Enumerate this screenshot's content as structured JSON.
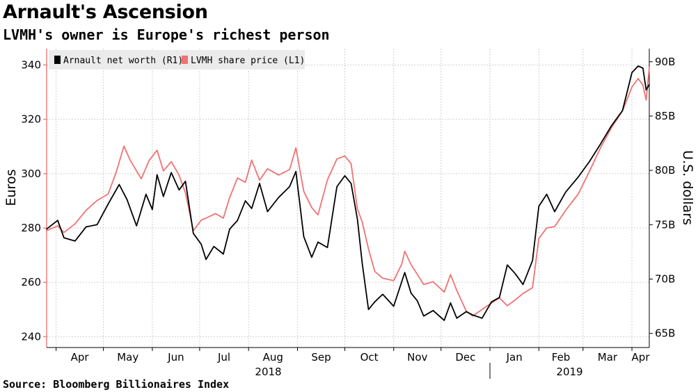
{
  "header": {
    "title": "Arnault's Ascension",
    "subtitle": "LVMH's owner is Europe's richest person"
  },
  "footer": {
    "source": "Source: Bloomberg Billionaires Index"
  },
  "chart_data": {
    "type": "line",
    "title": "Arnault's Ascension",
    "subtitle": "LVMH's owner is Europe's richest person",
    "x_axis": {
      "month_labels": [
        "Apr",
        "May",
        "Jun",
        "Jul",
        "Aug",
        "Sep",
        "Oct",
        "Nov",
        "Dec",
        "Jan",
        "Feb",
        "Mar",
        "Apr"
      ],
      "year_labels": [
        "2018",
        "2019"
      ],
      "range": [
        "2018-03-26",
        "2019-04-12"
      ]
    },
    "y_left": {
      "label": "Euros",
      "ylim": [
        236,
        346
      ],
      "ticks": [
        240,
        260,
        280,
        300,
        320,
        340
      ],
      "tick_labels": [
        "240",
        "260",
        "280",
        "300",
        "320",
        "340"
      ]
    },
    "y_right": {
      "label": "U.S. dollars",
      "ylim": [
        63.7,
        91.2
      ],
      "ticks": [
        65,
        70,
        75,
        80,
        85,
        90
      ],
      "tick_labels": [
        "65B",
        "70B",
        "75B",
        "80B",
        "85B",
        "90B"
      ]
    },
    "grid": true,
    "legend_position": "top-left",
    "series": [
      {
        "name": "Arnault net worth (R1)",
        "axis": "right",
        "color": "#000000",
        "points": [
          [
            "2018-03-26",
            74.6
          ],
          [
            "2018-04-02",
            75.4
          ],
          [
            "2018-04-06",
            73.8
          ],
          [
            "2018-04-13",
            73.5
          ],
          [
            "2018-04-20",
            74.8
          ],
          [
            "2018-04-27",
            75.0
          ],
          [
            "2018-05-04",
            76.9
          ],
          [
            "2018-05-11",
            78.7
          ],
          [
            "2018-05-16",
            77.3
          ],
          [
            "2018-05-22",
            74.9
          ],
          [
            "2018-05-28",
            77.8
          ],
          [
            "2018-06-01",
            76.4
          ],
          [
            "2018-06-04",
            79.6
          ],
          [
            "2018-06-08",
            77.6
          ],
          [
            "2018-06-13",
            79.8
          ],
          [
            "2018-06-18",
            78.2
          ],
          [
            "2018-06-22",
            79.0
          ],
          [
            "2018-06-27",
            74.2
          ],
          [
            "2018-07-02",
            73.2
          ],
          [
            "2018-07-05",
            71.8
          ],
          [
            "2018-07-10",
            73.0
          ],
          [
            "2018-07-16",
            72.3
          ],
          [
            "2018-07-20",
            74.6
          ],
          [
            "2018-07-25",
            75.4
          ],
          [
            "2018-07-30",
            77.2
          ],
          [
            "2018-08-03",
            76.5
          ],
          [
            "2018-08-08",
            78.8
          ],
          [
            "2018-08-13",
            76.2
          ],
          [
            "2018-08-20",
            77.5
          ],
          [
            "2018-08-27",
            78.5
          ],
          [
            "2018-08-31",
            79.9
          ],
          [
            "2018-09-05",
            73.9
          ],
          [
            "2018-09-10",
            72.0
          ],
          [
            "2018-09-14",
            73.4
          ],
          [
            "2018-09-20",
            72.9
          ],
          [
            "2018-09-26",
            78.5
          ],
          [
            "2018-10-01",
            79.5
          ],
          [
            "2018-10-05",
            78.8
          ],
          [
            "2018-10-09",
            75.5
          ],
          [
            "2018-10-12",
            71.5
          ],
          [
            "2018-10-16",
            67.2
          ],
          [
            "2018-10-20",
            67.9
          ],
          [
            "2018-10-25",
            68.6
          ],
          [
            "2018-11-01",
            67.5
          ],
          [
            "2018-11-08",
            70.6
          ],
          [
            "2018-11-12",
            68.7
          ],
          [
            "2018-11-16",
            68.0
          ],
          [
            "2018-11-20",
            66.6
          ],
          [
            "2018-11-26",
            67.1
          ],
          [
            "2018-12-03",
            66.2
          ],
          [
            "2018-12-07",
            67.8
          ],
          [
            "2018-12-11",
            66.4
          ],
          [
            "2018-12-17",
            67.0
          ],
          [
            "2018-12-21",
            66.7
          ],
          [
            "2018-12-27",
            66.4
          ],
          [
            "2019-01-02",
            67.9
          ],
          [
            "2019-01-07",
            68.3
          ],
          [
            "2019-01-12",
            71.3
          ],
          [
            "2019-01-17",
            70.5
          ],
          [
            "2019-01-22",
            69.5
          ],
          [
            "2019-01-28",
            71.7
          ],
          [
            "2019-02-01",
            76.7
          ],
          [
            "2019-02-06",
            77.8
          ],
          [
            "2019-02-11",
            76.2
          ],
          [
            "2019-02-18",
            78.0
          ],
          [
            "2019-02-26",
            79.4
          ],
          [
            "2019-03-05",
            80.8
          ],
          [
            "2019-03-12",
            82.4
          ],
          [
            "2019-03-19",
            84.1
          ],
          [
            "2019-03-26",
            85.5
          ],
          [
            "2019-04-01",
            89.0
          ],
          [
            "2019-04-05",
            89.6
          ],
          [
            "2019-04-08",
            89.4
          ],
          [
            "2019-04-10",
            87.4
          ],
          [
            "2019-04-12",
            87.9
          ]
        ]
      },
      {
        "name": "LVMH share price (L1)",
        "axis": "left",
        "color": "#f07272",
        "points": [
          [
            "2018-03-26",
            279.0
          ],
          [
            "2018-04-02",
            280.8
          ],
          [
            "2018-04-06",
            278.3
          ],
          [
            "2018-04-13",
            281.5
          ],
          [
            "2018-04-20",
            286.5
          ],
          [
            "2018-04-27",
            290.1
          ],
          [
            "2018-05-04",
            292.5
          ],
          [
            "2018-05-09",
            300.3
          ],
          [
            "2018-05-14",
            310.1
          ],
          [
            "2018-05-18",
            304.9
          ],
          [
            "2018-05-22",
            301.0
          ],
          [
            "2018-05-25",
            298.1
          ],
          [
            "2018-05-30",
            304.9
          ],
          [
            "2018-06-04",
            308.6
          ],
          [
            "2018-06-08",
            301.0
          ],
          [
            "2018-06-13",
            304.4
          ],
          [
            "2018-06-18",
            299.4
          ],
          [
            "2018-06-22",
            292.9
          ],
          [
            "2018-06-27",
            279.0
          ],
          [
            "2018-07-02",
            282.9
          ],
          [
            "2018-07-06",
            283.9
          ],
          [
            "2018-07-11",
            285.3
          ],
          [
            "2018-07-16",
            283.6
          ],
          [
            "2018-07-20",
            291.2
          ],
          [
            "2018-07-25",
            298.4
          ],
          [
            "2018-07-30",
            296.8
          ],
          [
            "2018-08-03",
            305.0
          ],
          [
            "2018-08-08",
            297.6
          ],
          [
            "2018-08-13",
            301.8
          ],
          [
            "2018-08-20",
            299.5
          ],
          [
            "2018-08-27",
            301.5
          ],
          [
            "2018-08-31",
            309.5
          ],
          [
            "2018-09-05",
            293.5
          ],
          [
            "2018-09-10",
            287.5
          ],
          [
            "2018-09-14",
            284.8
          ],
          [
            "2018-09-20",
            297.7
          ],
          [
            "2018-09-26",
            305.4
          ],
          [
            "2018-10-01",
            306.5
          ],
          [
            "2018-10-05",
            303.7
          ],
          [
            "2018-10-09",
            287.0
          ],
          [
            "2018-10-12",
            282.3
          ],
          [
            "2018-10-16",
            272.3
          ],
          [
            "2018-10-20",
            264.0
          ],
          [
            "2018-10-25",
            261.5
          ],
          [
            "2018-11-01",
            260.6
          ],
          [
            "2018-11-06",
            266.6
          ],
          [
            "2018-11-08",
            271.4
          ],
          [
            "2018-11-12",
            266.5
          ],
          [
            "2018-11-16",
            262.9
          ],
          [
            "2018-11-20",
            259.2
          ],
          [
            "2018-11-26",
            260.2
          ],
          [
            "2018-12-03",
            256.4
          ],
          [
            "2018-12-07",
            262.8
          ],
          [
            "2018-12-11",
            257.0
          ],
          [
            "2018-12-17",
            249.4
          ],
          [
            "2018-12-21",
            247.6
          ],
          [
            "2018-12-27",
            250.0
          ],
          [
            "2019-01-02",
            252.4
          ],
          [
            "2019-01-07",
            254.3
          ],
          [
            "2019-01-12",
            251.4
          ],
          [
            "2019-01-17",
            253.5
          ],
          [
            "2019-01-22",
            255.9
          ],
          [
            "2019-01-28",
            258.0
          ],
          [
            "2019-02-01",
            276.1
          ],
          [
            "2019-02-06",
            280.0
          ],
          [
            "2019-02-11",
            280.5
          ],
          [
            "2019-02-18",
            286.5
          ],
          [
            "2019-02-26",
            292.5
          ],
          [
            "2019-03-05",
            300.8
          ],
          [
            "2019-03-12",
            309.4
          ],
          [
            "2019-03-19",
            316.9
          ],
          [
            "2019-03-26",
            323.1
          ],
          [
            "2019-04-01",
            331.9
          ],
          [
            "2019-04-05",
            335.0
          ],
          [
            "2019-04-08",
            332.5
          ],
          [
            "2019-04-10",
            327.1
          ],
          [
            "2019-04-12",
            339.1
          ]
        ]
      }
    ]
  }
}
